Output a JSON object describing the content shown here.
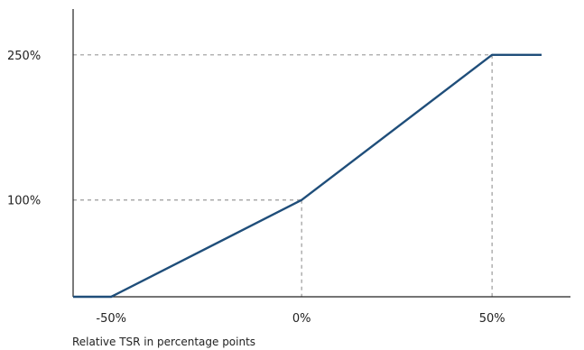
{
  "chart_data": {
    "type": "line",
    "title": "",
    "xlabel": "Relative TSR in percentage points",
    "ylabel": "",
    "xlim": [
      -60,
      63
    ],
    "ylim": [
      0,
      275
    ],
    "x_ticks": [
      {
        "value": -50,
        "label": "-50%"
      },
      {
        "value": 0,
        "label": "0%"
      },
      {
        "value": 50,
        "label": "50%"
      }
    ],
    "y_ticks": [
      {
        "value": 100,
        "label": "100%"
      },
      {
        "value": 250,
        "label": "250%"
      }
    ],
    "series": [
      {
        "color": "#1f4e7a",
        "points": [
          [
            -60,
            0
          ],
          [
            -50,
            0
          ],
          [
            0,
            100
          ],
          [
            50,
            250
          ],
          [
            63,
            250
          ]
        ]
      }
    ],
    "reference_lines": [
      {
        "type": "horizontal",
        "value": 100,
        "to_x": 0
      },
      {
        "type": "horizontal",
        "value": 250,
        "to_x": 50
      },
      {
        "type": "vertical",
        "value": 0,
        "to_y": 100
      },
      {
        "type": "vertical",
        "value": 50,
        "to_y": 250
      }
    ],
    "grid": false,
    "axis_color": "#222222",
    "reference_line_color": "#9a9a9a"
  }
}
